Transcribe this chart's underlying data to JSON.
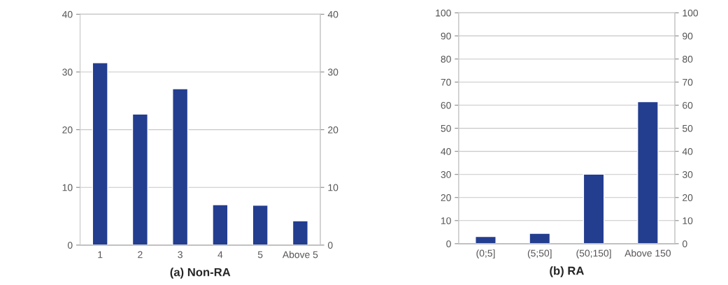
{
  "chart_data": [
    {
      "type": "bar",
      "title": "(a) Non-RA",
      "categories": [
        "1",
        "2",
        "3",
        "4",
        "5",
        "Above 5"
      ],
      "values": [
        31.6,
        22.7,
        27.1,
        7.0,
        6.9,
        4.2
      ],
      "color": "#233d8f",
      "ylim": [
        0,
        40
      ],
      "yticks": [
        0,
        10,
        20,
        30,
        40
      ],
      "y2lim": [
        0,
        40
      ],
      "y2ticks": [
        0,
        10,
        20,
        30,
        40
      ],
      "grid": true
    },
    {
      "type": "bar",
      "title": "(b) RA",
      "categories": [
        "(0;5]",
        "(5;50]",
        "(50;150]",
        "Above 150"
      ],
      "values": [
        3.1,
        4.5,
        30.1,
        61.5
      ],
      "color": "#233d8f",
      "ylim": [
        0,
        100
      ],
      "yticks": [
        0,
        10,
        20,
        30,
        40,
        50,
        60,
        70,
        80,
        90,
        100
      ],
      "y2lim": [
        0,
        100
      ],
      "y2ticks": [
        0,
        10,
        20,
        30,
        40,
        50,
        60,
        70,
        80,
        90,
        100
      ],
      "grid": true
    }
  ]
}
